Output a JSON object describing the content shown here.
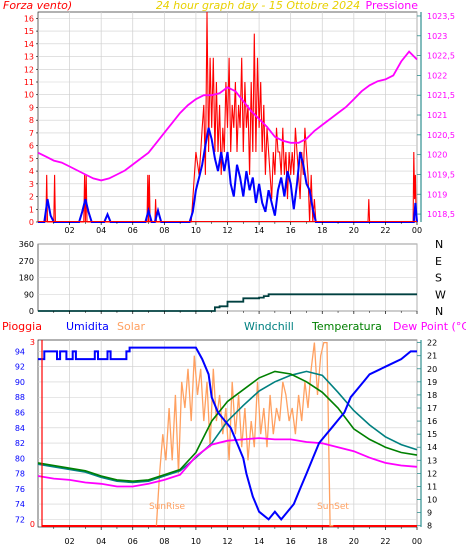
{
  "colors": {
    "background": "#ffffff",
    "grid": "#cfcfcf",
    "axis_teal": "#2f8f8f",
    "wind": "#ff0000",
    "gust_avg": "#0000ff",
    "pressure": "#ff00ff",
    "direction": "#004040",
    "rain": "#ff0000",
    "humidity": "#0000ff",
    "solar": "#ffa060",
    "windchill": "#008080",
    "temperature": "#008000",
    "dewpoint": "#ff00ff",
    "title_yellow": "#e8d000"
  },
  "hour_labels": [
    "02",
    "04",
    "06",
    "08",
    "10",
    "12",
    "14",
    "16",
    "18",
    "20",
    "22",
    "00"
  ],
  "chart_data": [
    {
      "type": "line",
      "name": "wind-pressure",
      "title": "24 hour graph day - 15 Ottobre 2024",
      "ylabel_left": "Forza vento)",
      "ylabel_right": "Pressione",
      "ylim_left": [
        0,
        16.5
      ],
      "ylim_right": [
        1018.3,
        1023.6
      ],
      "yticks_left": [
        "0",
        "1",
        "2",
        "3",
        "4",
        "5",
        "6",
        "7",
        "8",
        "9",
        "10",
        "11",
        "12",
        "13",
        "14",
        "15",
        "16"
      ],
      "yticks_right": [
        "1018,5",
        "1019",
        "1019,5",
        "1020",
        "1020,5",
        "1021",
        "1021,5",
        "1022",
        "1022,5",
        "1023",
        "1023,5"
      ],
      "series": [
        {
          "name": "wind_gust",
          "axis": "left",
          "x": [
            0.5,
            0.55,
            0.6,
            1.0,
            1.05,
            1.1,
            2.9,
            2.95,
            3.0,
            3.05,
            3.1,
            3.2,
            6.9,
            6.95,
            7.0,
            7.05,
            7.1,
            7.4,
            7.45,
            7.5,
            9.7,
            9.8,
            10.0,
            10.2,
            10.3,
            10.4,
            10.5,
            10.6,
            10.7,
            10.8,
            10.9,
            11.0,
            11.1,
            11.2,
            11.3,
            11.4,
            11.5,
            11.6,
            11.7,
            11.8,
            11.9,
            12.0,
            12.1,
            12.2,
            12.3,
            12.4,
            12.5,
            12.6,
            12.7,
            12.8,
            12.9,
            13.0,
            13.1,
            13.2,
            13.3,
            13.4,
            13.5,
            13.6,
            13.7,
            13.8,
            13.9,
            14.0,
            14.1,
            14.2,
            14.3,
            14.4,
            14.5,
            14.6,
            14.7,
            14.8,
            14.9,
            15.0,
            15.1,
            15.2,
            15.3,
            15.4,
            15.5,
            15.6,
            15.7,
            15.8,
            15.9,
            16.0,
            16.1,
            16.2,
            16.3,
            16.4,
            16.5,
            16.6,
            16.7,
            16.8,
            16.9,
            17.0,
            17.1,
            17.2,
            17.3,
            17.4,
            17.5,
            17.6,
            17.7,
            20.9,
            20.95,
            21.0,
            21.05,
            23.75,
            23.8,
            23.85,
            23.9,
            23.95
          ],
          "values": [
            0,
            3.7,
            0,
            0,
            3.7,
            0,
            0,
            3.7,
            0,
            3.7,
            0,
            0,
            0,
            3.7,
            0,
            3.7,
            0,
            0,
            1.8,
            0,
            0,
            1.8,
            5.5,
            3.7,
            5.5,
            7.4,
            9.2,
            3.7,
            16.5,
            5.5,
            12.9,
            7.4,
            12.9,
            5.5,
            11,
            5.5,
            9.2,
            3.7,
            7.4,
            5.5,
            11,
            7.4,
            12.9,
            5.5,
            9.2,
            7.4,
            11,
            5.5,
            9.2,
            7.4,
            12.9,
            5.5,
            11,
            7.4,
            9.2,
            3.7,
            11,
            5.5,
            14.8,
            5.5,
            12.9,
            7.4,
            11,
            5.5,
            9.2,
            3.7,
            7.4,
            5.5,
            3.7,
            1.8,
            5.5,
            3.7,
            7.4,
            5.5,
            5.5,
            3.7,
            7.4,
            3.7,
            5.5,
            1.8,
            5.5,
            3.7,
            5.5,
            3.7,
            7.4,
            5.5,
            3.7,
            1.8,
            5.5,
            3.7,
            7.4,
            5.5,
            3.7,
            0,
            3.7,
            0,
            1.8,
            0,
            0,
            0,
            1.8,
            0,
            0,
            0,
            5.5,
            1.8,
            3.7,
            0
          ]
        },
        {
          "name": "wind_avg",
          "axis": "left",
          "x": [
            0,
            0.4,
            0.6,
            0.8,
            1.0,
            2.6,
            2.8,
            3.0,
            3.2,
            3.4,
            4.2,
            4.4,
            4.6,
            6.8,
            7.0,
            7.2,
            7.4,
            7.6,
            7.8,
            9.6,
            9.8,
            10.0,
            10.2,
            10.4,
            10.6,
            10.8,
            11.0,
            11.2,
            11.4,
            11.6,
            11.8,
            12.0,
            12.2,
            12.4,
            12.6,
            12.8,
            13.0,
            13.2,
            13.4,
            13.6,
            13.8,
            14.0,
            14.2,
            14.4,
            14.6,
            14.8,
            15.0,
            15.2,
            15.4,
            15.6,
            15.8,
            16.0,
            16.2,
            16.4,
            16.6,
            16.8,
            17.0,
            17.2,
            17.4,
            17.6,
            17.8,
            18.0,
            23.8,
            23.9,
            24.0
          ],
          "values": [
            0,
            0,
            1.8,
            0.5,
            0,
            0,
            0.8,
            1.8,
            0.8,
            0,
            0,
            0.6,
            0,
            0,
            0.9,
            0,
            0,
            0.9,
            0,
            0,
            0.8,
            2.5,
            3.5,
            4.5,
            6,
            7.4,
            6.5,
            5,
            4,
            5.5,
            4,
            5.5,
            3,
            2,
            4.5,
            3.5,
            2,
            4,
            2.5,
            3.5,
            1.5,
            3,
            1.5,
            0.8,
            2.5,
            1.5,
            0.5,
            2.5,
            3.5,
            2,
            4,
            3,
            1,
            3,
            5.5,
            4.5,
            3,
            2.5,
            1,
            0,
            0,
            0,
            0,
            1.5,
            0
          ]
        },
        {
          "name": "pressure",
          "axis": "right",
          "x": [
            0,
            0.5,
            1.0,
            1.5,
            2.0,
            2.5,
            3.0,
            3.5,
            4.0,
            4.5,
            5.0,
            5.5,
            6.0,
            6.5,
            7.0,
            7.5,
            8.0,
            8.5,
            9.0,
            9.5,
            10.0,
            10.5,
            11.0,
            11.5,
            12.0,
            12.5,
            13.0,
            13.5,
            14.0,
            14.5,
            15.0,
            15.5,
            16.0,
            16.5,
            17.0,
            17.5,
            18.0,
            18.5,
            19.0,
            19.5,
            20.0,
            20.5,
            21.0,
            21.5,
            22.0,
            22.5,
            23.0,
            23.5,
            24.0
          ],
          "values": [
            1020.05,
            1019.95,
            1019.85,
            1019.8,
            1019.7,
            1019.6,
            1019.5,
            1019.4,
            1019.35,
            1019.4,
            1019.5,
            1019.6,
            1019.75,
            1019.9,
            1020.05,
            1020.3,
            1020.55,
            1020.8,
            1021.05,
            1021.25,
            1021.4,
            1021.5,
            1021.5,
            1021.55,
            1021.7,
            1021.6,
            1021.35,
            1021.1,
            1020.9,
            1020.7,
            1020.45,
            1020.35,
            1020.3,
            1020.3,
            1020.4,
            1020.6,
            1020.75,
            1020.9,
            1021.05,
            1021.2,
            1021.4,
            1021.6,
            1021.75,
            1021.85,
            1021.9,
            1022.0,
            1022.35,
            1022.6,
            1022.4
          ]
        }
      ]
    },
    {
      "type": "line",
      "name": "wind-direction",
      "yticks_left": [
        "0",
        "90",
        "180",
        "270",
        "360"
      ],
      "yticks_right": [
        "N",
        "W",
        "S",
        "E",
        "N"
      ],
      "ylim": [
        0,
        360
      ],
      "series": [
        {
          "name": "direction",
          "x": [
            0,
            10.5,
            11.0,
            11.2,
            11.5,
            12.0,
            13.0,
            14.0,
            14.3,
            14.6,
            24.0
          ],
          "values": [
            0,
            0,
            0,
            20,
            25,
            50,
            68,
            72,
            80,
            90,
            90
          ]
        }
      ]
    },
    {
      "type": "line",
      "name": "temperature-humidity",
      "legend": [
        "Pioggia",
        "Umidita",
        "Solar",
        "Windchill",
        "Temperatura",
        "Dew Point (°C)"
      ],
      "ylim_left": [
        71,
        95.5
      ],
      "ylim_right": [
        7.9,
        22.2
      ],
      "yticks_left": [
        "72",
        "74",
        "76",
        "78",
        "80",
        "82",
        "84",
        "86",
        "88",
        "90",
        "92",
        "94"
      ],
      "yticks_right": [
        "8",
        "9",
        "10",
        "11",
        "12",
        "13",
        "14",
        "15",
        "16",
        "17",
        "18",
        "19",
        "20",
        "21",
        "22"
      ],
      "rain_ticks": [
        "0",
        "3"
      ],
      "annotations": [
        "SunRise",
        "SunSet"
      ],
      "series": [
        {
          "name": "humidity",
          "axis": "left",
          "x": [
            0,
            0.4,
            0.4,
            1.2,
            1.2,
            1.4,
            1.4,
            1.8,
            1.8,
            2.2,
            2.2,
            2.4,
            2.4,
            3.6,
            3.6,
            3.8,
            3.8,
            4.4,
            4.4,
            4.6,
            4.6,
            5.6,
            5.6,
            5.8,
            5.8,
            10.0,
            10.4,
            10.8,
            11.0,
            11.4,
            11.8,
            12.2,
            12.6,
            13.0,
            13.2,
            13.6,
            14.0,
            14.6,
            15.0,
            15.4,
            15.8,
            16.2,
            16.6,
            17.0,
            17.4,
            17.8,
            18.2,
            18.6,
            19.0,
            19.4,
            19.8,
            20.2,
            20.6,
            21.0,
            22.0,
            23.0,
            23.6,
            24.0
          ],
          "values": [
            93,
            93,
            94,
            94,
            93,
            93,
            94,
            94,
            93,
            93,
            94,
            94,
            93,
            93,
            94,
            94,
            93,
            93,
            94,
            94,
            93,
            93,
            94,
            94,
            94.5,
            94.5,
            93,
            91,
            88,
            86,
            85,
            84,
            82,
            80,
            78,
            75,
            73,
            72,
            73,
            72,
            73,
            74,
            76,
            78,
            80,
            82,
            83,
            84,
            85,
            86,
            88,
            89,
            90,
            91,
            92,
            93,
            94,
            94
          ]
        },
        {
          "name": "solar",
          "axis": "right",
          "x": [
            7.5,
            7.7,
            7.9,
            8.1,
            8.3,
            8.5,
            8.7,
            8.9,
            9.1,
            9.3,
            9.5,
            9.7,
            9.9,
            10.1,
            10.3,
            10.5,
            10.7,
            10.9,
            11.1,
            11.3,
            11.5,
            11.7,
            11.9,
            12.1,
            12.3,
            12.5,
            12.7,
            12.9,
            13.1,
            13.3,
            13.5,
            13.7,
            13.9,
            14.1,
            14.3,
            14.5,
            14.7,
            14.9,
            15.1,
            15.3,
            15.5,
            15.7,
            15.9,
            16.1,
            16.3,
            16.5,
            16.7,
            16.9,
            17.1,
            17.3,
            17.5,
            17.7,
            17.9,
            18.1,
            18.3,
            18.5,
            18.7
          ],
          "values": [
            8,
            12,
            15,
            13,
            17,
            13,
            18,
            12,
            19,
            17,
            20,
            16,
            21,
            18,
            20,
            16,
            19,
            14,
            20,
            16,
            18,
            15,
            17,
            13,
            19,
            15,
            18,
            14,
            17,
            13,
            16,
            14,
            19,
            15,
            17,
            14,
            18,
            15,
            17,
            16,
            19,
            18,
            16,
            17,
            15,
            18,
            16,
            19,
            17,
            20,
            22,
            18,
            21,
            22,
            22,
            8,
            8
          ]
        },
        {
          "name": "windchill",
          "axis": "right",
          "x": [
            0,
            1,
            2,
            3,
            4,
            5,
            6,
            7,
            8,
            9,
            10,
            11,
            12,
            13,
            14,
            15,
            16,
            17,
            18,
            19,
            20,
            21,
            22,
            23,
            24
          ],
          "values": [
            12.7,
            12.5,
            12.3,
            12.1,
            11.7,
            11.4,
            11.3,
            11.4,
            11.8,
            12.2,
            13.2,
            14.3,
            16.0,
            17.2,
            18.3,
            19.0,
            19.5,
            19.8,
            19.5,
            18.2,
            16.8,
            15.7,
            14.8,
            14.2,
            13.8
          ]
        },
        {
          "name": "temperature",
          "axis": "right",
          "x": [
            0,
            1,
            2,
            3,
            4,
            5,
            6,
            7,
            8,
            9,
            10,
            11,
            12,
            13,
            14,
            15,
            16,
            17,
            18,
            19,
            20,
            21,
            22,
            23,
            24
          ],
          "values": [
            12.8,
            12.6,
            12.4,
            12.2,
            11.8,
            11.5,
            11.4,
            11.5,
            11.9,
            12.3,
            13.6,
            16.0,
            17.5,
            18.4,
            19.3,
            19.8,
            19.6,
            19.0,
            18.2,
            17.0,
            15.4,
            14.6,
            14.0,
            13.6,
            13.4
          ]
        },
        {
          "name": "dewpoint",
          "axis": "right",
          "x": [
            0,
            1,
            2,
            3,
            4,
            5,
            6,
            7,
            8,
            9,
            10,
            11,
            12,
            13,
            14,
            15,
            16,
            17,
            18,
            19,
            20,
            21,
            22,
            23,
            24
          ],
          "values": [
            11.8,
            11.6,
            11.5,
            11.3,
            11.2,
            11.0,
            11.0,
            11.2,
            11.5,
            11.9,
            13.3,
            14.2,
            14.5,
            14.6,
            14.7,
            14.6,
            14.6,
            14.4,
            14.3,
            14.0,
            13.7,
            13.2,
            12.8,
            12.6,
            12.5
          ]
        }
      ]
    }
  ]
}
